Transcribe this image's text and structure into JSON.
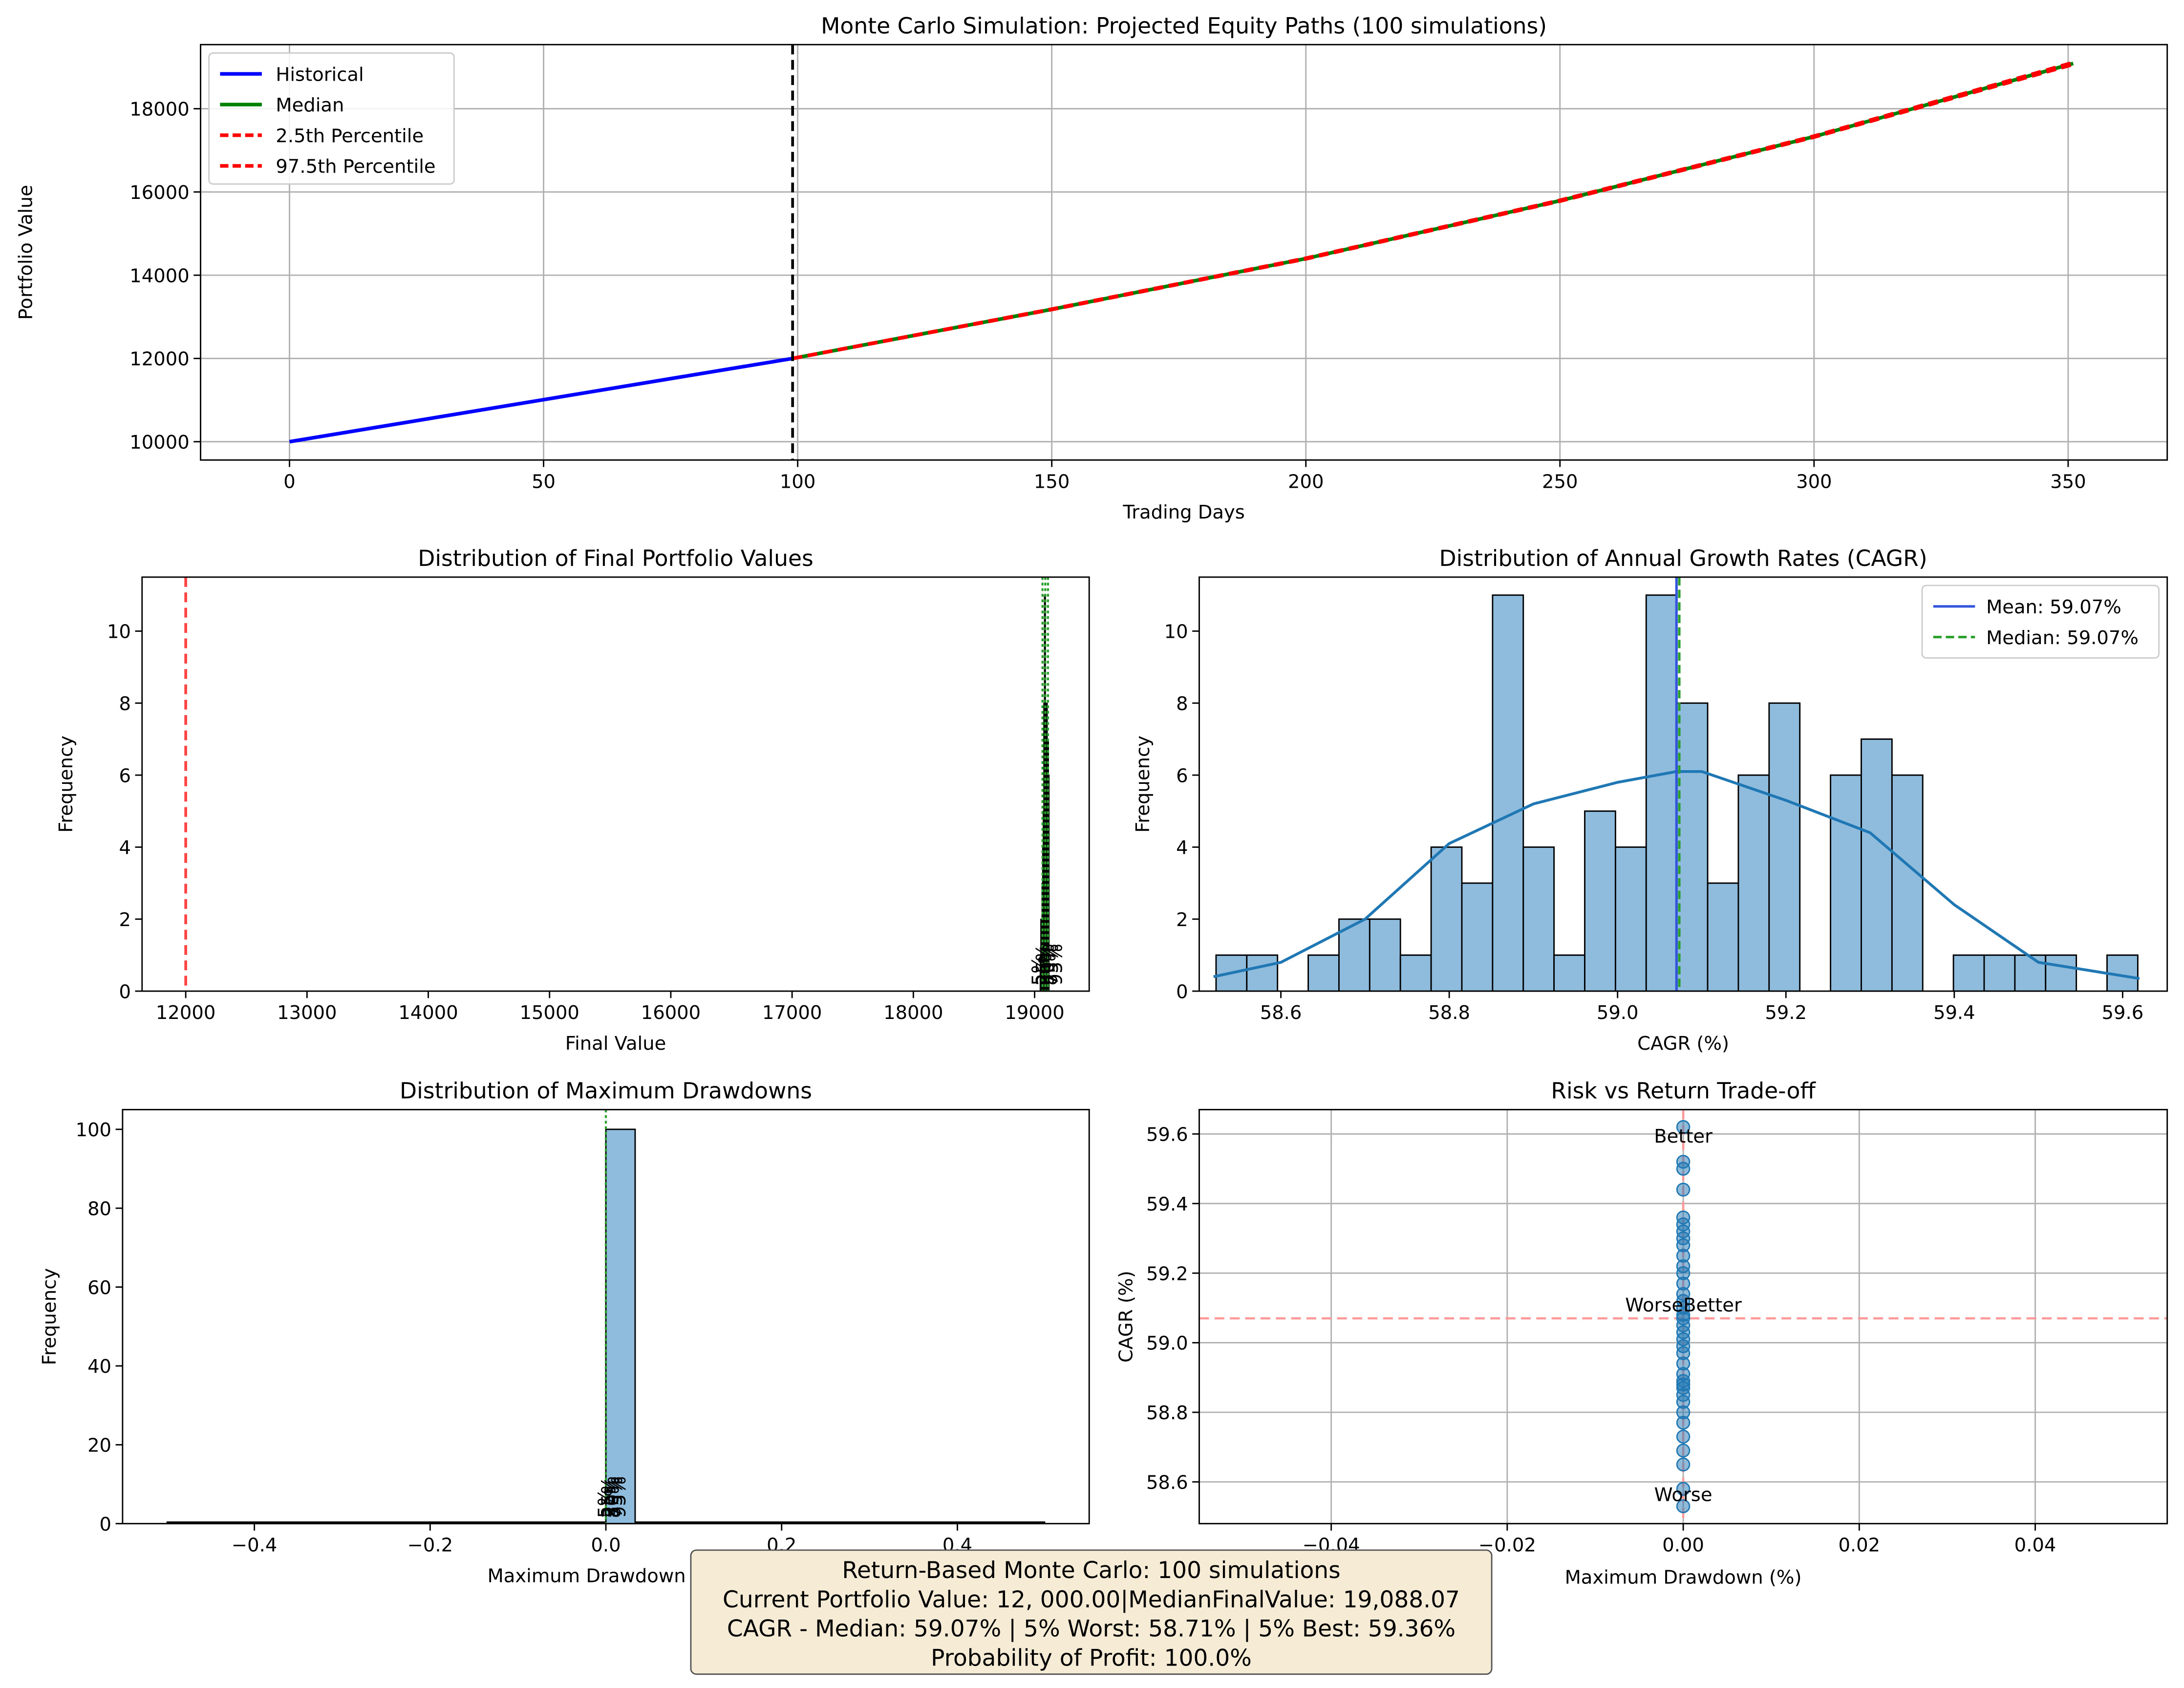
{
  "chart_data": [
    {
      "id": "equity",
      "type": "line",
      "title": "Monte Carlo Simulation: Projected Equity Paths (100 simulations)",
      "xlabel": "Trading Days",
      "ylabel": "Portfolio Value",
      "xlim": [
        -17.5,
        369.5
      ],
      "ylim": [
        9560,
        19540
      ],
      "xticks": [
        0,
        50,
        100,
        150,
        200,
        250,
        300,
        350
      ],
      "yticks": [
        10000,
        12000,
        14000,
        16000,
        18000
      ],
      "grid": true,
      "legend_position": "top-left",
      "split_line_x": 99,
      "series": [
        {
          "name": "Historical",
          "color": "#0000ff",
          "style": "solid",
          "x": [
            0,
            99
          ],
          "y": [
            10000,
            12000
          ]
        },
        {
          "name": "Median",
          "color": "#008000",
          "style": "solid",
          "x": [
            99,
            150,
            200,
            250,
            300,
            351
          ],
          "y": [
            12000,
            13180,
            14400,
            15790,
            17330,
            19088
          ]
        },
        {
          "name": "2.5th Percentile",
          "color": "#ff0000",
          "style": "dashed",
          "x": [
            99,
            150,
            200,
            250,
            300,
            351
          ],
          "y": [
            12000,
            13175,
            14392,
            15780,
            17318,
            19065
          ]
        },
        {
          "name": "97.5th Percentile",
          "color": "#ff0000",
          "style": "dashed",
          "x": [
            99,
            150,
            200,
            250,
            300,
            351
          ],
          "y": [
            12000,
            13185,
            14408,
            15800,
            17342,
            19110
          ]
        }
      ]
    },
    {
      "id": "final",
      "type": "bar",
      "title": "Distribution of Final Portfolio Values",
      "xlabel": "Final Value",
      "ylabel": "Frequency",
      "xlim": [
        11640,
        19450
      ],
      "ylim": [
        0,
        11.5
      ],
      "xticks": [
        12000,
        13000,
        14000,
        15000,
        16000,
        17000,
        18000,
        19000
      ],
      "yticks": [
        0,
        2,
        4,
        6,
        8,
        10
      ],
      "initial_value": 12000,
      "bins_x": [
        19045,
        19050,
        19055,
        19060,
        19065,
        19070,
        19075,
        19080,
        19085,
        19090,
        19095,
        19100,
        19105,
        19110,
        19115
      ],
      "bins_count": [
        1,
        2,
        1,
        3,
        4,
        5,
        8,
        11,
        11,
        8,
        6,
        8,
        6,
        7,
        6
      ],
      "percentile_lines": [
        19065,
        19088,
        19110
      ],
      "annotations": [
        "5%",
        "25%",
        "50%",
        "75%",
        "95%"
      ]
    },
    {
      "id": "cagr",
      "type": "bar",
      "title": "Distribution of Annual Growth Rates (CAGR)",
      "xlabel": "CAGR (%)",
      "ylabel": "Frequency",
      "xlim": [
        58.503,
        59.653
      ],
      "ylim": [
        0,
        11.5
      ],
      "xticks": [
        58.6,
        58.8,
        59.0,
        59.2,
        59.4,
        59.6
      ],
      "xtick_labels": [
        "58.6",
        "58.8",
        "59.0",
        "59.2",
        "59.4",
        "59.6"
      ],
      "yticks": [
        0,
        2,
        4,
        6,
        8,
        10
      ],
      "bin_start": 58.523,
      "bin_width": 0.0365,
      "counts": [
        1,
        1,
        0,
        1,
        2,
        2,
        1,
        4,
        3,
        11,
        4,
        1,
        5,
        4,
        11,
        8,
        3,
        6,
        8,
        0,
        6,
        7,
        6,
        0,
        1,
        1,
        1,
        1,
        0,
        1
      ],
      "kde_x": [
        58.52,
        58.6,
        58.7,
        58.8,
        58.9,
        59.0,
        59.07,
        59.1,
        59.2,
        59.3,
        59.4,
        59.5,
        59.62
      ],
      "kde_y": [
        0.4,
        0.8,
        2.0,
        4.1,
        5.2,
        5.8,
        6.1,
        6.1,
        5.3,
        4.4,
        2.4,
        0.8,
        0.35
      ],
      "mean": 59.07,
      "median": 59.07,
      "legend_position": "top-right",
      "legend": [
        "Mean: 59.07%",
        "Median: 59.07%"
      ]
    },
    {
      "id": "drawdown",
      "type": "bar",
      "title": "Distribution of Maximum Drawdowns",
      "xlabel": "Maximum Drawdown (%)",
      "ylabel": "Frequency",
      "xlim": [
        -0.55,
        0.55
      ],
      "ylim": [
        0,
        105
      ],
      "xticks": [
        -0.4,
        -0.2,
        0.0,
        0.2,
        0.4
      ],
      "xtick_labels": [
        "−0.4",
        "−0.2",
        "0.0",
        "0.2",
        "0.4"
      ],
      "yticks": [
        0,
        20,
        40,
        60,
        80,
        100
      ],
      "bar": {
        "x0": 0.0,
        "x1": 0.0333,
        "count": 100
      },
      "annotations": [
        "5%",
        "25%",
        "50%",
        "75%",
        "95%"
      ]
    },
    {
      "id": "scatter",
      "type": "scatter",
      "title": "Risk vs Return Trade-off",
      "xlabel": "Maximum Drawdown (%)",
      "ylabel": "CAGR (%)",
      "xlim": [
        -0.055,
        0.055
      ],
      "ylim": [
        58.48,
        59.67
      ],
      "xticks": [
        -0.04,
        -0.02,
        0.0,
        0.02,
        0.04
      ],
      "xtick_labels": [
        "−0.04",
        "−0.02",
        "0.00",
        "0.02",
        "0.04"
      ],
      "yticks": [
        58.6,
        58.8,
        59.0,
        59.2,
        59.4,
        59.6
      ],
      "ytick_labels": [
        "58.6",
        "58.8",
        "59.0",
        "59.2",
        "59.4",
        "59.6"
      ],
      "grid": true,
      "median_cagr": 59.07,
      "points_x": 0.0,
      "points_y": [
        58.53,
        58.58,
        58.65,
        58.69,
        58.73,
        58.77,
        58.8,
        58.83,
        58.85,
        58.87,
        58.88,
        58.89,
        58.91,
        58.94,
        58.97,
        58.99,
        59.01,
        59.03,
        59.05,
        59.07,
        59.08,
        59.1,
        59.12,
        59.14,
        59.17,
        59.2,
        59.22,
        59.25,
        59.28,
        59.3,
        59.32,
        59.34,
        59.36,
        59.44,
        59.5,
        59.52,
        59.62
      ],
      "labels": {
        "top": "Better",
        "bottom": "Worse",
        "mid_left": "Worse",
        "mid_right": "Better"
      }
    }
  ],
  "summary": {
    "line1": "Return-Based Monte Carlo: 100 simulations",
    "line2": "Current Portfolio Value: 12, 000.00|MedianFinalValue: 19,088.07",
    "line3": "CAGR - Median: 59.07% | 5% Worst: 58.71% | 5% Best: 59.36%",
    "line4": "Probability of Profit: 100.0%"
  }
}
